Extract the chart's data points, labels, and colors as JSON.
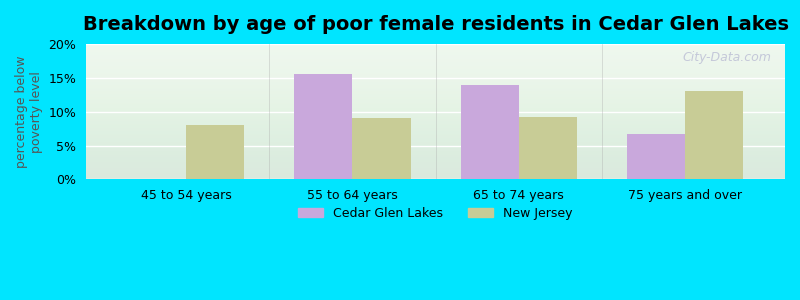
{
  "title": "Breakdown by age of poor female residents in Cedar Glen Lakes",
  "categories": [
    "45 to 54 years",
    "55 to 64 years",
    "65 to 74 years",
    "75 years and over"
  ],
  "cedar_glen_lakes": [
    0,
    15.5,
    14.0,
    6.7
  ],
  "new_jersey": [
    8.0,
    9.0,
    9.2,
    13.0
  ],
  "cedar_color": "#c9a8dc",
  "nj_color": "#c8cc96",
  "ylabel": "percentage below\npoverty level",
  "ylim": [
    0,
    20
  ],
  "yticks": [
    0,
    5,
    10,
    15,
    20
  ],
  "ytick_labels": [
    "0%",
    "5%",
    "10%",
    "15%",
    "20%"
  ],
  "legend_cedar": "Cedar Glen Lakes",
  "legend_nj": "New Jersey",
  "bg_outer": "#00e5ff",
  "bg_plot": "#eef7ee",
  "watermark": "City-Data.com",
  "bar_width": 0.35,
  "title_fontsize": 14,
  "axis_fontsize": 9,
  "legend_fontsize": 9
}
